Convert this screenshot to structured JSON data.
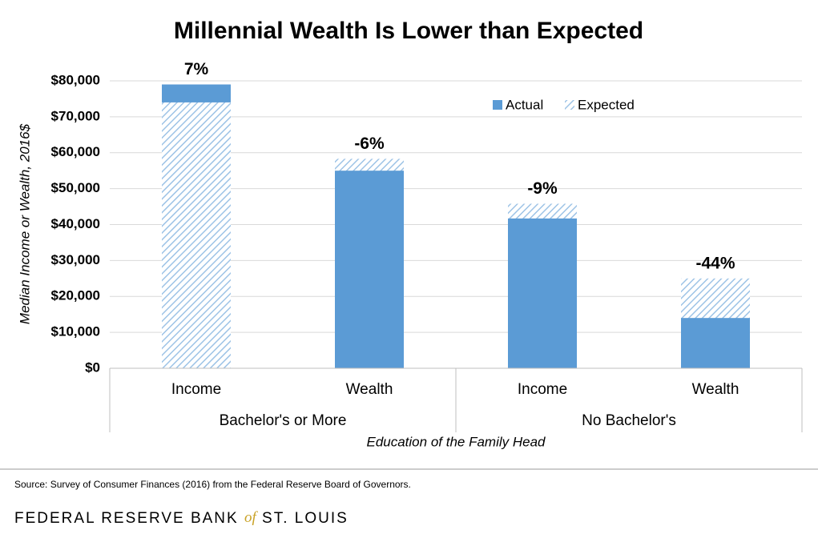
{
  "chart_data": {
    "type": "bar",
    "title": "Millennial Wealth Is Lower than Expected",
    "y_label": "Median Income or Wealth, 2016$",
    "x_label": "Education of the Family Head",
    "categories": [
      "Income",
      "Wealth",
      "Income",
      "Wealth"
    ],
    "groups": [
      "Bachelor's or More",
      "No Bachelor's"
    ],
    "series": [
      {
        "name": "Actual",
        "color": "#5b9bd5",
        "values": [
          79000,
          55000,
          41700,
          14000
        ]
      },
      {
        "name": "Expected",
        "color": "#9dc3e6",
        "values": [
          74000,
          58300,
          45800,
          25000
        ]
      }
    ],
    "annotations": [
      "7%",
      "-6%",
      "-9%",
      "-44%"
    ],
    "ylim": [
      0,
      80000
    ],
    "yticks": [
      {
        "value": 0,
        "label": "$0"
      },
      {
        "value": 10000,
        "label": "$10,000"
      },
      {
        "value": 20000,
        "label": "$20,000"
      },
      {
        "value": 30000,
        "label": "$30,000"
      },
      {
        "value": 40000,
        "label": "$40,000"
      },
      {
        "value": 50000,
        "label": "$50,000"
      },
      {
        "value": 60000,
        "label": "$60,000"
      },
      {
        "value": 70000,
        "label": "$70,000"
      },
      {
        "value": 80000,
        "label": "$80,000"
      }
    ],
    "grid": true
  },
  "footer": {
    "source": "Source: Survey of Consumer Finances (2016) from the Federal Reserve Board of Governors.",
    "brand_left": "FEDERAL RESERVE BANK",
    "brand_of": "of",
    "brand_right": "ST. LOUIS"
  }
}
